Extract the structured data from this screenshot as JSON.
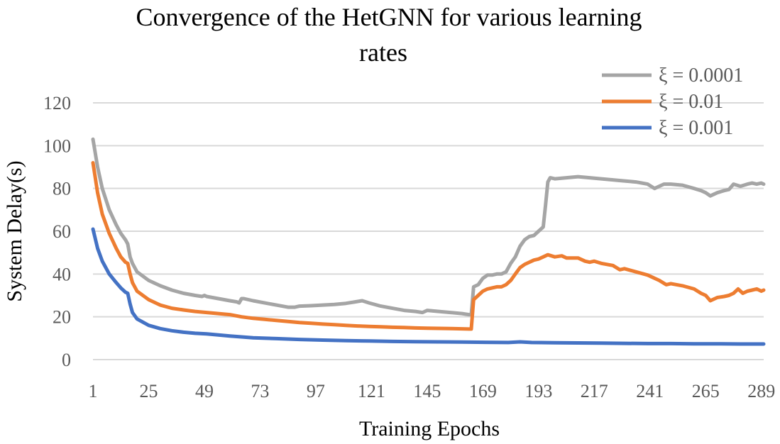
{
  "chart_data": {
    "type": "line",
    "title": "Convergence of the HetGNN for various learning rates",
    "title_lines": [
      "Convergence of the HetGNN for various learning",
      "rates"
    ],
    "xlabel": "Training Epochs",
    "ylabel": "System Delay(s)",
    "x_range": [
      1,
      290
    ],
    "ylim": [
      0,
      120
    ],
    "y_ticks": [
      0,
      20,
      40,
      60,
      80,
      100,
      120
    ],
    "x_ticks": [
      1,
      25,
      49,
      73,
      97,
      121,
      145,
      169,
      193,
      217,
      241,
      265,
      289
    ],
    "grid": true,
    "legend_position": "top-right",
    "series": [
      {
        "name": "ξ = 0.0001",
        "color": "#A5A5A5",
        "points": [
          [
            1,
            103
          ],
          [
            3,
            90
          ],
          [
            5,
            80
          ],
          [
            8,
            70
          ],
          [
            11,
            63
          ],
          [
            13,
            59
          ],
          [
            15,
            56
          ],
          [
            16,
            54
          ],
          [
            17,
            48
          ],
          [
            18,
            45
          ],
          [
            20,
            41
          ],
          [
            25,
            37
          ],
          [
            30,
            34.5
          ],
          [
            35,
            32.5
          ],
          [
            40,
            31
          ],
          [
            45,
            30
          ],
          [
            48,
            29.5
          ],
          [
            49,
            30
          ],
          [
            50,
            29.5
          ],
          [
            55,
            28.5
          ],
          [
            60,
            27.5
          ],
          [
            63,
            27
          ],
          [
            64,
            26.5
          ],
          [
            65,
            28.5
          ],
          [
            66,
            28.5
          ],
          [
            70,
            27.5
          ],
          [
            75,
            26.5
          ],
          [
            80,
            25.5
          ],
          [
            85,
            24.5
          ],
          [
            88,
            24.5
          ],
          [
            90,
            25
          ],
          [
            95,
            25.2
          ],
          [
            100,
            25.5
          ],
          [
            105,
            25.8
          ],
          [
            110,
            26.3
          ],
          [
            114,
            27
          ],
          [
            117,
            27.5
          ],
          [
            120,
            26.5
          ],
          [
            125,
            25
          ],
          [
            130,
            24
          ],
          [
            135,
            23
          ],
          [
            140,
            22.5
          ],
          [
            143,
            22
          ],
          [
            145,
            23
          ],
          [
            150,
            22.5
          ],
          [
            155,
            22
          ],
          [
            160,
            21.5
          ],
          [
            163,
            21
          ],
          [
            164,
            21
          ],
          [
            165,
            34
          ],
          [
            167,
            35
          ],
          [
            169,
            38
          ],
          [
            171,
            39.5
          ],
          [
            173,
            39.5
          ],
          [
            175,
            40
          ],
          [
            177,
            40
          ],
          [
            179,
            41
          ],
          [
            181,
            45
          ],
          [
            183,
            48
          ],
          [
            185,
            53
          ],
          [
            187,
            56
          ],
          [
            189,
            57.5
          ],
          [
            191,
            58
          ],
          [
            193,
            60
          ],
          [
            195,
            62
          ],
          [
            196,
            72
          ],
          [
            197,
            83
          ],
          [
            198,
            85
          ],
          [
            200,
            84.5
          ],
          [
            205,
            85
          ],
          [
            210,
            85.5
          ],
          [
            215,
            85
          ],
          [
            220,
            84.5
          ],
          [
            225,
            84
          ],
          [
            230,
            83.5
          ],
          [
            235,
            83
          ],
          [
            240,
            82
          ],
          [
            243,
            80
          ],
          [
            245,
            81
          ],
          [
            247,
            82
          ],
          [
            250,
            82
          ],
          [
            255,
            81.5
          ],
          [
            260,
            80
          ],
          [
            263,
            79
          ],
          [
            265,
            78
          ],
          [
            267,
            76.5
          ],
          [
            270,
            78
          ],
          [
            273,
            79
          ],
          [
            275,
            79.5
          ],
          [
            277,
            82
          ],
          [
            280,
            81
          ],
          [
            283,
            82
          ],
          [
            285,
            82.5
          ],
          [
            287,
            82
          ],
          [
            289,
            82.5
          ],
          [
            290,
            82
          ]
        ]
      },
      {
        "name": "ξ = 0.01",
        "color": "#ED7D31",
        "points": [
          [
            1,
            92
          ],
          [
            3,
            78
          ],
          [
            5,
            68
          ],
          [
            8,
            59
          ],
          [
            11,
            52
          ],
          [
            13,
            48
          ],
          [
            15,
            45.5
          ],
          [
            16,
            45
          ],
          [
            17,
            40
          ],
          [
            18,
            36
          ],
          [
            20,
            32
          ],
          [
            25,
            28
          ],
          [
            30,
            25.5
          ],
          [
            35,
            24
          ],
          [
            40,
            23.2
          ],
          [
            45,
            22.5
          ],
          [
            50,
            22
          ],
          [
            55,
            21.5
          ],
          [
            60,
            21
          ],
          [
            65,
            20
          ],
          [
            70,
            19.3
          ],
          [
            75,
            18.8
          ],
          [
            80,
            18.3
          ],
          [
            85,
            17.8
          ],
          [
            90,
            17.3
          ],
          [
            95,
            17
          ],
          [
            100,
            16.6
          ],
          [
            105,
            16.3
          ],
          [
            110,
            16
          ],
          [
            115,
            15.7
          ],
          [
            120,
            15.5
          ],
          [
            125,
            15.3
          ],
          [
            130,
            15.1
          ],
          [
            135,
            15
          ],
          [
            140,
            14.8
          ],
          [
            145,
            14.7
          ],
          [
            150,
            14.6
          ],
          [
            155,
            14.5
          ],
          [
            160,
            14.4
          ],
          [
            163,
            14.3
          ],
          [
            164,
            14.3
          ],
          [
            165,
            28
          ],
          [
            167,
            30
          ],
          [
            169,
            32
          ],
          [
            171,
            33
          ],
          [
            173,
            33.5
          ],
          [
            175,
            34
          ],
          [
            177,
            34
          ],
          [
            179,
            35
          ],
          [
            181,
            37
          ],
          [
            183,
            40
          ],
          [
            185,
            43
          ],
          [
            187,
            44.5
          ],
          [
            189,
            45.5
          ],
          [
            191,
            46.5
          ],
          [
            193,
            47
          ],
          [
            195,
            48
          ],
          [
            197,
            49
          ],
          [
            200,
            48
          ],
          [
            203,
            48.5
          ],
          [
            205,
            47.5
          ],
          [
            210,
            47.5
          ],
          [
            213,
            46
          ],
          [
            215,
            45.5
          ],
          [
            217,
            46
          ],
          [
            220,
            45
          ],
          [
            225,
            44
          ],
          [
            228,
            42
          ],
          [
            230,
            42.5
          ],
          [
            235,
            41
          ],
          [
            240,
            39.5
          ],
          [
            245,
            37
          ],
          [
            248,
            35
          ],
          [
            250,
            35.5
          ],
          [
            255,
            34.5
          ],
          [
            260,
            33
          ],
          [
            263,
            31
          ],
          [
            265,
            30
          ],
          [
            267,
            27.5
          ],
          [
            270,
            29
          ],
          [
            273,
            29.5
          ],
          [
            275,
            30
          ],
          [
            277,
            31
          ],
          [
            279,
            33
          ],
          [
            281,
            31
          ],
          [
            283,
            32
          ],
          [
            285,
            32.5
          ],
          [
            287,
            33
          ],
          [
            289,
            32
          ],
          [
            290,
            32.5
          ]
        ]
      },
      {
        "name": "ξ = 0.001",
        "color": "#4472C4",
        "points": [
          [
            1,
            61
          ],
          [
            3,
            52
          ],
          [
            5,
            46
          ],
          [
            8,
            40
          ],
          [
            11,
            36
          ],
          [
            13,
            33.5
          ],
          [
            15,
            31.5
          ],
          [
            16,
            31
          ],
          [
            17,
            26
          ],
          [
            18,
            22
          ],
          [
            20,
            19
          ],
          [
            25,
            16
          ],
          [
            30,
            14.5
          ],
          [
            35,
            13.5
          ],
          [
            40,
            12.8
          ],
          [
            45,
            12.3
          ],
          [
            50,
            12
          ],
          [
            55,
            11.5
          ],
          [
            60,
            11
          ],
          [
            65,
            10.6
          ],
          [
            70,
            10.2
          ],
          [
            80,
            9.8
          ],
          [
            90,
            9.4
          ],
          [
            100,
            9.1
          ],
          [
            110,
            8.9
          ],
          [
            120,
            8.7
          ],
          [
            130,
            8.5
          ],
          [
            140,
            8.4
          ],
          [
            150,
            8.3
          ],
          [
            160,
            8.2
          ],
          [
            170,
            8.1
          ],
          [
            180,
            8
          ],
          [
            185,
            8.3
          ],
          [
            190,
            8
          ],
          [
            200,
            7.9
          ],
          [
            210,
            7.8
          ],
          [
            220,
            7.7
          ],
          [
            230,
            7.6
          ],
          [
            240,
            7.5
          ],
          [
            250,
            7.5
          ],
          [
            260,
            7.4
          ],
          [
            270,
            7.4
          ],
          [
            280,
            7.3
          ],
          [
            290,
            7.3
          ]
        ]
      }
    ]
  }
}
